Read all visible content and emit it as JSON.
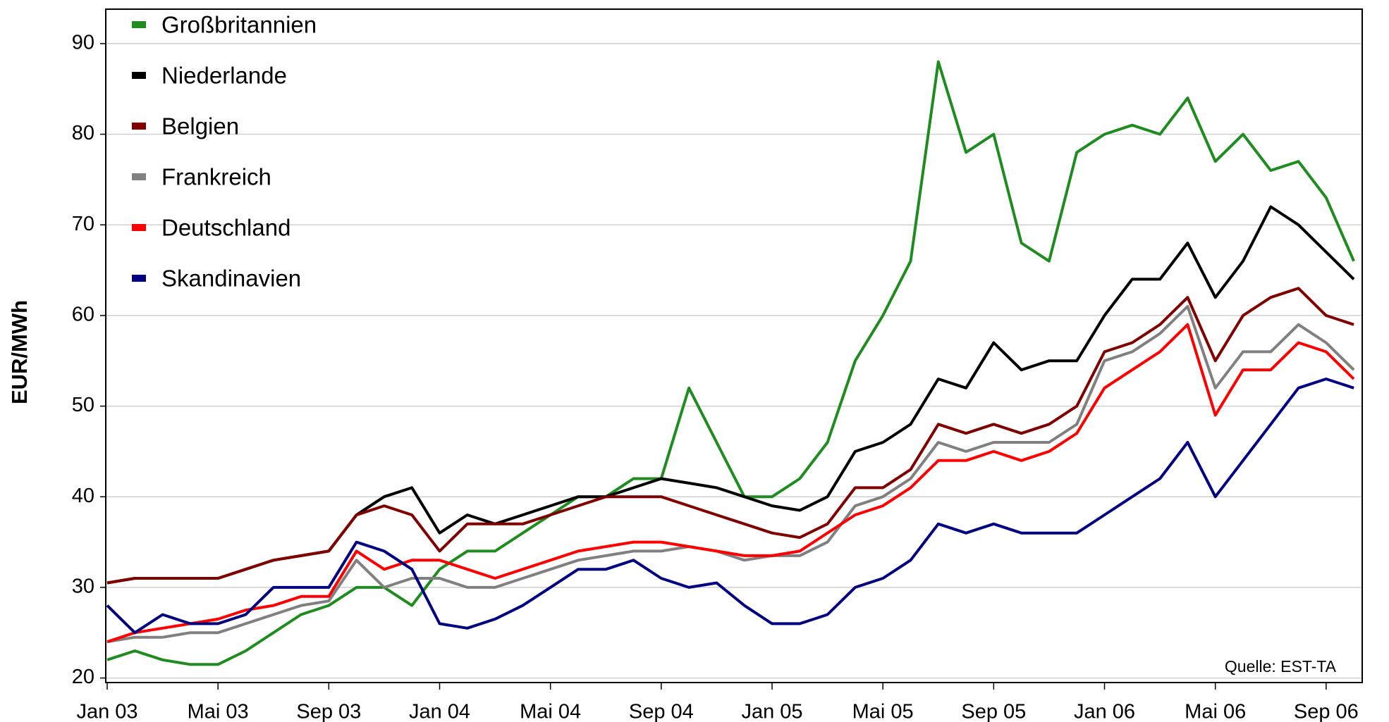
{
  "chart_data": {
    "type": "line",
    "y_label": "EUR/MWh",
    "annotation": "Quelle: EST-TA",
    "categories": [
      "Jan 03",
      null,
      null,
      null,
      "Mai 03",
      null,
      null,
      null,
      "Sep 03",
      null,
      null,
      null,
      "Jan 04",
      null,
      null,
      null,
      "Mai 04",
      null,
      null,
      null,
      "Sep 04",
      null,
      null,
      null,
      "Jan 05",
      null,
      null,
      null,
      "Mai 05",
      null,
      null,
      null,
      "Sep 05",
      null,
      null,
      null,
      "Jan 06",
      null,
      null,
      null,
      "Mai 06",
      null,
      null,
      null,
      "Sep 06",
      null
    ],
    "ylim": [
      19.5,
      93.8
    ],
    "yticks": [
      20,
      30,
      40,
      50,
      60,
      70,
      80,
      90
    ],
    "grid": true,
    "legend": "upper left",
    "series": [
      {
        "name": "Großbritannien",
        "color": "#1e8c1e",
        "values": [
          22,
          23,
          22,
          21.5,
          21.5,
          23,
          25,
          27,
          28,
          30,
          30,
          28,
          32,
          34,
          34,
          36,
          38,
          40,
          40,
          42,
          42,
          52,
          46,
          40,
          40,
          42,
          46,
          55,
          60,
          66,
          88,
          78,
          80,
          68,
          66,
          78,
          80,
          81,
          80,
          84,
          77,
          80,
          76,
          77,
          73,
          66
        ]
      },
      {
        "name": "Niederlande",
        "color": "#000000",
        "values": [
          30.5,
          31,
          31,
          31,
          31,
          32,
          33,
          33.5,
          34,
          38,
          40,
          41,
          36,
          38,
          37,
          38,
          39,
          40,
          40,
          41,
          42,
          41.5,
          41,
          40,
          39,
          38.5,
          40,
          45,
          46,
          48,
          53,
          52,
          57,
          54,
          55,
          55,
          60,
          64,
          64,
          68,
          62,
          66,
          72,
          70,
          67,
          64
        ]
      },
      {
        "name": "Belgien",
        "color": "#800000",
        "values": [
          30.5,
          31,
          31,
          31,
          31,
          32,
          33,
          33.5,
          34,
          38,
          39,
          38,
          34,
          37,
          37,
          37,
          38,
          39,
          40,
          40,
          40,
          39,
          38,
          37,
          36,
          35.5,
          37,
          41,
          41,
          43,
          48,
          47,
          48,
          47,
          48,
          50,
          56,
          57,
          59,
          62,
          55,
          60,
          62,
          63,
          60,
          59
        ]
      },
      {
        "name": "Frankreich",
        "color": "#808080",
        "values": [
          24,
          24.5,
          24.5,
          25,
          25,
          26,
          27,
          28,
          28.5,
          33,
          30,
          31,
          31,
          30,
          30,
          31,
          32,
          33,
          33.5,
          34,
          34,
          34.5,
          34,
          33,
          33.5,
          33.5,
          35,
          39,
          40,
          42,
          46,
          45,
          46,
          46,
          46,
          48,
          55,
          56,
          58,
          61,
          52,
          56,
          56,
          59,
          57,
          54
        ]
      },
      {
        "name": "Deutschland",
        "color": "#ff0000",
        "values": [
          24,
          25,
          25.5,
          26,
          26.5,
          27.5,
          28,
          29,
          29,
          34,
          32,
          33,
          33,
          32,
          31,
          32,
          33,
          34,
          34.5,
          35,
          35,
          34.5,
          34,
          33.5,
          33.5,
          34,
          36,
          38,
          39,
          41,
          44,
          44,
          45,
          44,
          45,
          47,
          52,
          54,
          56,
          59,
          49,
          54,
          54,
          57,
          56,
          53
        ]
      },
      {
        "name": "Skandinavien",
        "color": "#000080",
        "values": [
          28,
          25,
          27,
          26,
          26,
          27,
          30,
          30,
          30,
          35,
          34,
          32,
          26,
          25.5,
          26.5,
          28,
          30,
          32,
          32,
          33,
          31,
          30,
          30.5,
          28,
          26,
          26,
          27,
          30,
          31,
          33,
          37,
          36,
          37,
          36,
          36,
          36,
          38,
          40,
          42,
          46,
          40,
          44,
          48,
          52,
          53,
          52
        ]
      }
    ]
  }
}
